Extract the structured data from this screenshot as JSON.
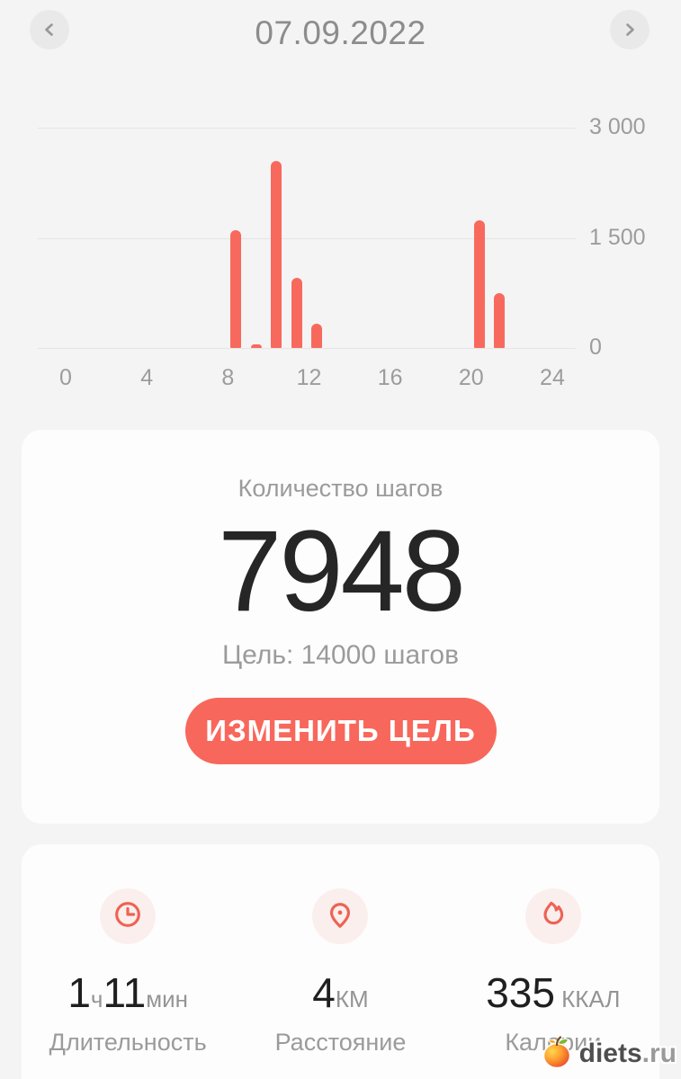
{
  "header": {
    "date": "07.09.2022",
    "prev_icon": "chevron-left-icon",
    "next_icon": "chevron-right-icon"
  },
  "chart_data": {
    "type": "bar",
    "title": "",
    "xlabel": "",
    "ylabel": "",
    "x_unit": "hour",
    "bars": [
      {
        "hour": 8,
        "steps": 1600
      },
      {
        "hour": 9,
        "steps": 30
      },
      {
        "hour": 10,
        "steps": 2550
      },
      {
        "hour": 11,
        "steps": 950
      },
      {
        "hour": 12,
        "steps": 330
      },
      {
        "hour": 20,
        "steps": 1740
      },
      {
        "hour": 21,
        "steps": 748
      }
    ],
    "total_steps": 7948,
    "x_ticks": [
      0,
      4,
      8,
      12,
      16,
      20,
      24
    ],
    "y_ticks": [
      {
        "value": 0,
        "label": "0"
      },
      {
        "value": 1500,
        "label": "1 500"
      },
      {
        "value": 3000,
        "label": "3 000"
      }
    ],
    "xlim": [
      0,
      24
    ],
    "ylim": [
      0,
      3000
    ],
    "grid": true,
    "legend": false,
    "bar_color": "#f8695d"
  },
  "steps_card": {
    "title": "Количество шагов",
    "value": "7948",
    "goal": "Цель: 14000 шагов",
    "button_label": "ИЗМЕНИТЬ ЦЕЛЬ"
  },
  "stats_card": {
    "items": [
      {
        "icon": "clock-icon",
        "parts": [
          {
            "text": "1",
            "size": "big"
          },
          {
            "text": "ч",
            "size": "small"
          },
          {
            "text": "11",
            "size": "big"
          },
          {
            "text": "мин",
            "size": "small"
          }
        ],
        "label": "Длительность"
      },
      {
        "icon": "location-pin-icon",
        "parts": [
          {
            "text": "4",
            "size": "big"
          },
          {
            "text": "КМ",
            "size": "small"
          }
        ],
        "label": "Расстояние"
      },
      {
        "icon": "flame-icon",
        "parts": [
          {
            "text": "335",
            "size": "big"
          },
          {
            "text": " ККАЛ",
            "size": "small"
          }
        ],
        "label": "Калории"
      }
    ]
  },
  "watermark": {
    "name": "diets",
    "tld": ".ru",
    "icon": "apple-logo-icon"
  },
  "colors": {
    "accent": "#f8675b",
    "bar": "#f8695d",
    "icon_stroke": "#ee6254",
    "icon_bg": "#fbefed",
    "background": "#f4f4f5",
    "card": "#fdfdfd",
    "grid_line": "#e5e5e5",
    "text_dark": "#262626",
    "text_gray": "#9b9b9b"
  }
}
